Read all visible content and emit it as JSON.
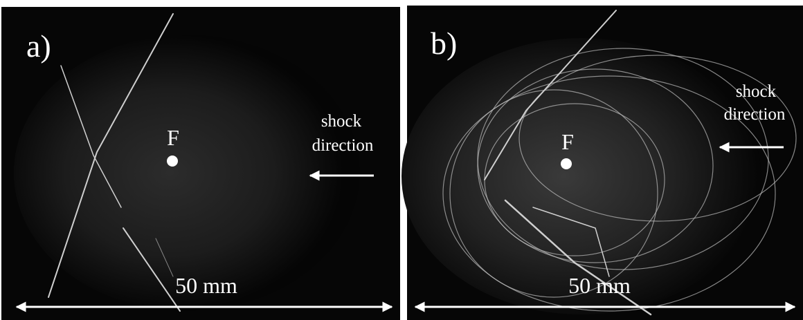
{
  "panels": [
    {
      "label": "a)",
      "point_label": "F",
      "annotation": [
        "shock",
        "direction"
      ],
      "scale_label": "50 mm"
    },
    {
      "label": "b)",
      "point_label": "F",
      "annotation": [
        "shock",
        "direction"
      ],
      "scale_label": "50 mm"
    }
  ]
}
